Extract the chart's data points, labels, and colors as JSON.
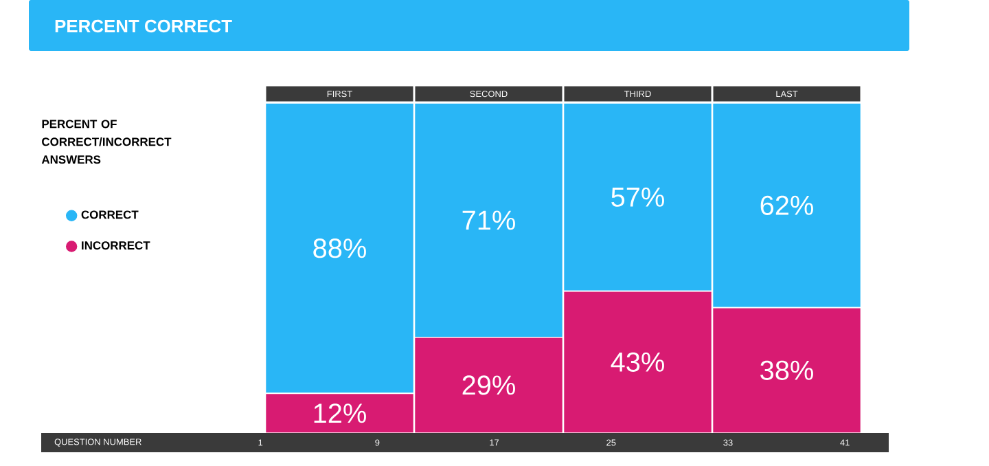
{
  "chart_data": {
    "type": "bar",
    "title": "PERCENT CORRECT",
    "stacked": true,
    "legend": "left",
    "legend_title": "PERCENT OF CORRECT/INCORRECT ANSWERS",
    "categories": [
      "FIRST",
      "SECOND",
      "THIRD",
      "LAST"
    ],
    "series": [
      {
        "name": "INCORRECT",
        "color": "#d81b72",
        "values": [
          12,
          29,
          43,
          38
        ],
        "value_labels": [
          "12%",
          "29%",
          "43%",
          "38%"
        ]
      },
      {
        "name": "CORRECT",
        "color": "#29b6f6",
        "values": [
          88,
          71,
          57,
          62
        ],
        "value_labels": [
          "88%",
          "71%",
          "57%",
          "62%"
        ]
      }
    ],
    "x2label": "QUESTION NUMBER",
    "x2lim": [
      -14,
      44
    ],
    "x2ticks": [
      1,
      9,
      17,
      25,
      33,
      41
    ]
  }
}
